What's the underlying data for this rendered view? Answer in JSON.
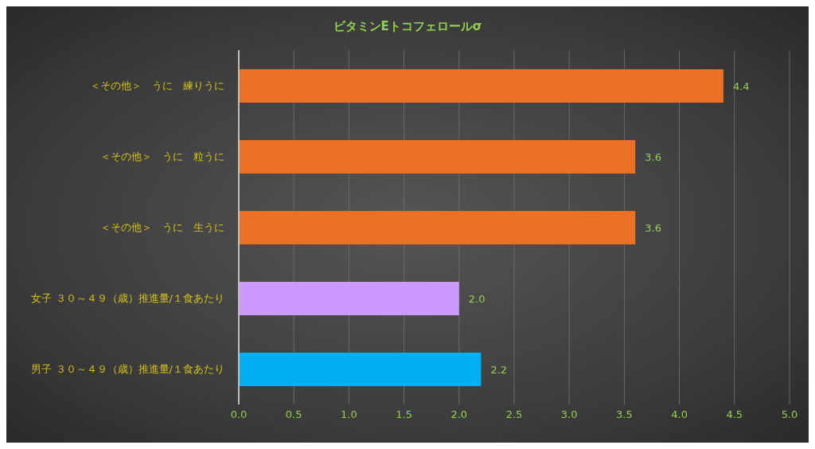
{
  "chart_data": {
    "type": "bar",
    "orientation": "horizontal",
    "title": "ビタミンEトコフェロールσ",
    "categories": [
      "＜その他＞　うに　練りうに",
      "＜その他＞　うに　粒うに",
      "＜その他＞　うに　生うに",
      "女子 ３０～４９（歳）推進量/１食あたり",
      "男子 ３０～４９（歳）推進量/１食あたり"
    ],
    "values": [
      4.4,
      3.6,
      3.6,
      2.0,
      2.2
    ],
    "colors": [
      "#ed7125",
      "#ed7125",
      "#ed7125",
      "#cc99ff",
      "#00b0f0"
    ],
    "value_labels": [
      "4.4",
      "3.6",
      "3.6",
      "2.0",
      "2.2"
    ],
    "xlim": [
      0,
      5
    ],
    "xticks": [
      {
        "value": 0,
        "label": "0.0"
      },
      {
        "value": 0.5,
        "label": "0.5"
      },
      {
        "value": 1,
        "label": "1.0"
      },
      {
        "value": 1.5,
        "label": "1.5"
      },
      {
        "value": 2,
        "label": "2.0"
      },
      {
        "value": 2.5,
        "label": "2.5"
      },
      {
        "value": 3,
        "label": "3.0"
      },
      {
        "value": 3.5,
        "label": "3.5"
      },
      {
        "value": 4,
        "label": "4.0"
      },
      {
        "value": 4.5,
        "label": "4.5"
      },
      {
        "value": 5,
        "label": "5.0"
      }
    ],
    "grid": "x",
    "legend": false
  }
}
